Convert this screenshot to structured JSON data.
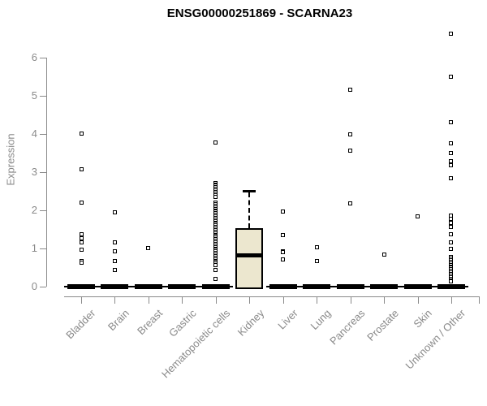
{
  "chart_data": {
    "type": "boxplot",
    "title": "ENSG00000251869 - SCARNA23",
    "ylabel": "Expression",
    "xlabel": "",
    "ylim": [
      0,
      6.8
    ],
    "yticks": [
      0,
      1,
      2,
      3,
      4,
      5,
      6
    ],
    "grid": false,
    "legend": "none",
    "categories": [
      "Bladder",
      "Brain",
      "Breast",
      "Gastric",
      "Hematopoietic cells",
      "Kidney",
      "Liver",
      "Lung",
      "Pancreas",
      "Prostate",
      "Skin",
      "Unknown / Other"
    ],
    "boxes": [
      {
        "category": "Bladder",
        "q1": 0,
        "median": 0,
        "q3": 0,
        "whisker_low": 0,
        "whisker_high": 0,
        "outliers": [
          4.02,
          3.08,
          2.2,
          1.38,
          1.27,
          1.15,
          0.96,
          0.68,
          0.63
        ]
      },
      {
        "category": "Brain",
        "q1": 0,
        "median": 0,
        "q3": 0,
        "whisker_low": 0,
        "whisker_high": 0,
        "outliers": [
          1.95,
          1.15,
          0.92,
          0.68,
          0.43
        ]
      },
      {
        "category": "Breast",
        "q1": 0,
        "median": 0,
        "q3": 0,
        "whisker_low": 0,
        "whisker_high": 0,
        "outliers": [
          1.02
        ]
      },
      {
        "category": "Gastric",
        "q1": 0,
        "median": 0,
        "q3": 0,
        "whisker_low": 0,
        "whisker_high": 0,
        "outliers": []
      },
      {
        "category": "Hematopoietic cells",
        "q1": 0,
        "median": 0,
        "q3": 0,
        "whisker_low": 0,
        "whisker_high": 0,
        "outliers": [
          3.77,
          2.72,
          2.68,
          2.64,
          2.6,
          2.56,
          2.52,
          2.48,
          2.44,
          2.4,
          2.36,
          2.2,
          2.16,
          2.12,
          2.08,
          2.04,
          2.0,
          1.96,
          1.92,
          1.88,
          1.84,
          1.8,
          1.76,
          1.72,
          1.68,
          1.64,
          1.6,
          1.56,
          1.52,
          1.48,
          1.44,
          1.4,
          1.36,
          1.32,
          1.28,
          1.24,
          1.2,
          1.16,
          1.12,
          1.08,
          1.04,
          1.0,
          0.96,
          0.92,
          0.88,
          0.84,
          0.8,
          0.76,
          0.72,
          0.68,
          0.64,
          0.6,
          0.56,
          0.43,
          0.2
        ]
      },
      {
        "category": "Kidney",
        "q1": 0,
        "median": 0.82,
        "q3": 1.53,
        "whisker_low": 0,
        "whisker_high": 2.52,
        "outliers": []
      },
      {
        "category": "Liver",
        "q1": 0,
        "median": 0,
        "q3": 0,
        "whisker_low": 0,
        "whisker_high": 0,
        "outliers": [
          1.96,
          1.36,
          0.93,
          0.9,
          0.72
        ]
      },
      {
        "category": "Lung",
        "q1": 0,
        "median": 0,
        "q3": 0,
        "whisker_low": 0,
        "whisker_high": 0,
        "outliers": [
          1.04,
          0.66
        ]
      },
      {
        "category": "Pancreas",
        "q1": 0,
        "median": 0,
        "q3": 0,
        "whisker_low": 0,
        "whisker_high": 0,
        "outliers": [
          5.15,
          3.98,
          3.57,
          2.19
        ]
      },
      {
        "category": "Prostate",
        "q1": 0,
        "median": 0,
        "q3": 0,
        "whisker_low": 0,
        "whisker_high": 0,
        "outliers": [
          0.83
        ]
      },
      {
        "category": "Skin",
        "q1": 0,
        "median": 0,
        "q3": 0,
        "whisker_low": 0,
        "whisker_high": 0,
        "outliers": [
          1.83
        ]
      },
      {
        "category": "Unknown / Other",
        "q1": 0,
        "median": 0,
        "q3": 0,
        "whisker_low": 0,
        "whisker_high": 0,
        "outliers": [
          6.62,
          5.51,
          4.3,
          3.75,
          3.51,
          3.28,
          3.18,
          2.83,
          1.87,
          1.77,
          1.67,
          1.57,
          1.38,
          1.17,
          0.98,
          0.77,
          0.73,
          0.69,
          0.65,
          0.61,
          0.57,
          0.53,
          0.49,
          0.45,
          0.41,
          0.37,
          0.33,
          0.29,
          0.25,
          0.21,
          0.17,
          0.13
        ]
      }
    ],
    "colors": {
      "box_fill": "#ECE7CF",
      "box_border": "#000000",
      "median": "#000000",
      "point": "#000000",
      "axis": "#8a8a8a",
      "tick_text": "#8a8a8a",
      "title": "#000000"
    }
  }
}
